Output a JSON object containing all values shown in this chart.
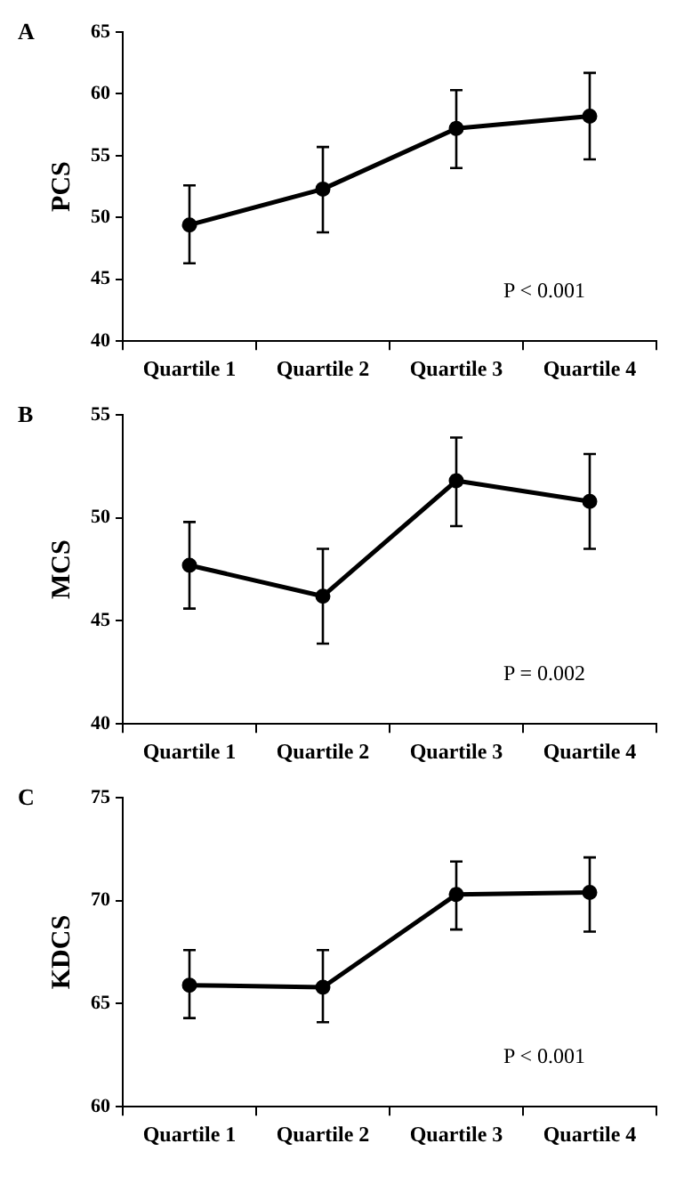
{
  "chart_data": [
    {
      "type": "line",
      "title": "A",
      "ylabel": "PCS",
      "categories": [
        "Quartile 1",
        "Quartile 2",
        "Quartile 3",
        "Quartile 4"
      ],
      "series": [
        {
          "color": "#000000",
          "values": [
            49.4,
            52.3,
            57.2,
            58.2
          ],
          "errors": [
            [
              46.3,
              52.6
            ],
            [
              48.8,
              55.7
            ],
            [
              54.0,
              60.3
            ],
            [
              54.7,
              61.7
            ]
          ]
        }
      ],
      "ylim": [
        40,
        65
      ],
      "yticks": [
        40,
        45,
        50,
        55,
        60,
        65
      ],
      "annotations": [
        "P < 0.001"
      ],
      "grid": false,
      "legend": false,
      "marker": "circle",
      "line_style": "solid"
    },
    {
      "type": "line",
      "title": "B",
      "ylabel": "MCS",
      "categories": [
        "Quartile 1",
        "Quartile 2",
        "Quartile 3",
        "Quartile 4"
      ],
      "series": [
        {
          "color": "#000000",
          "values": [
            47.7,
            46.2,
            51.8,
            50.8
          ],
          "errors": [
            [
              45.6,
              49.8
            ],
            [
              43.9,
              48.5
            ],
            [
              49.6,
              53.9
            ],
            [
              48.5,
              53.1
            ]
          ]
        }
      ],
      "ylim": [
        40,
        55
      ],
      "yticks": [
        40,
        45,
        50,
        55
      ],
      "annotations": [
        "P = 0.002"
      ],
      "grid": false,
      "legend": false,
      "marker": "circle",
      "line_style": "solid"
    },
    {
      "type": "line",
      "title": "C",
      "ylabel": "KDCS",
      "categories": [
        "Quartile 1",
        "Quartile 2",
        "Quartile 3",
        "Quartile 4"
      ],
      "series": [
        {
          "color": "#000000",
          "values": [
            65.9,
            65.8,
            70.3,
            70.4
          ],
          "errors": [
            [
              64.3,
              67.6
            ],
            [
              64.1,
              67.6
            ],
            [
              68.6,
              71.9
            ],
            [
              68.5,
              72.1
            ]
          ]
        }
      ],
      "ylim": [
        60,
        75
      ],
      "yticks": [
        60,
        65,
        70,
        75
      ],
      "annotations": [
        "P < 0.001"
      ],
      "grid": false,
      "legend": false,
      "marker": "circle",
      "line_style": "solid"
    }
  ]
}
